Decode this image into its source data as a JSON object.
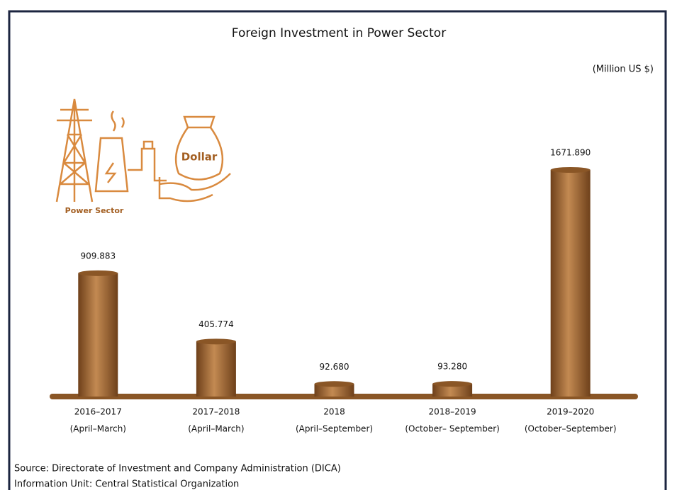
{
  "chart_data": {
    "type": "bar",
    "title": "Foreign Investment in Power Sector",
    "unit": "(Million US $)",
    "categories": [
      "2016–2017",
      "2017–2018",
      "2018",
      "2018–2019",
      "2019–2020"
    ],
    "category_periods": [
      "(April–March)",
      "(April–March)",
      "(April–September)",
      "(October– September)",
      "(October–September)"
    ],
    "values": [
      909.883,
      405.774,
      92.68,
      93.28,
      1671.89
    ],
    "value_labels": [
      "909.883",
      "405.774",
      "92.680",
      "93.280",
      "1671.890"
    ],
    "color": "#8a5626",
    "illustration": {
      "bag_label": "Dollar",
      "caption": "Power Sector"
    },
    "source": "Source:  Directorate of Investment and Company Administration (DICA)",
    "info": "Information Unit:  Central Statistical Organization"
  }
}
